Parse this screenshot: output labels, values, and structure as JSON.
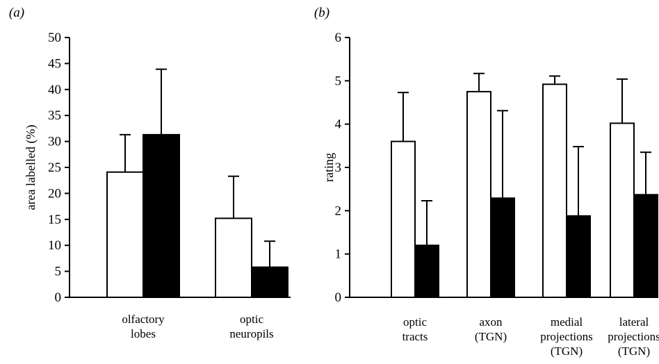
{
  "chart_data": [
    {
      "panel_label": "(a)",
      "type": "bar",
      "ylabel": "area labelled (%)",
      "xlabel": "",
      "ylim": [
        0,
        50
      ],
      "yticks": [
        0,
        5,
        10,
        15,
        20,
        25,
        30,
        35,
        40,
        45,
        50
      ],
      "categories": [
        [
          "olfactory",
          "lobes"
        ],
        [
          "optic",
          "neuropils"
        ]
      ],
      "series": [
        {
          "fill": "#ffffff",
          "values": [
            24.1,
            15.2
          ],
          "errors": [
            7.2,
            8.1
          ]
        },
        {
          "fill": "#000000",
          "values": [
            31.3,
            5.8
          ],
          "errors": [
            12.6,
            5.0
          ]
        }
      ],
      "grid": false,
      "legend": "none"
    },
    {
      "panel_label": "(b)",
      "type": "bar",
      "ylabel": "rating",
      "xlabel": "",
      "ylim": [
        0,
        6
      ],
      "yticks": [
        0,
        1,
        2,
        3,
        4,
        5,
        6
      ],
      "categories": [
        [
          "optic",
          "tracts"
        ],
        [
          "axon",
          "(TGN)"
        ],
        [
          "medial",
          "projections",
          "(TGN)"
        ],
        [
          "lateral",
          "projections",
          "(TGN)"
        ]
      ],
      "series": [
        {
          "fill": "#ffffff",
          "values": [
            3.6,
            4.75,
            4.92,
            4.02
          ],
          "errors": [
            1.13,
            0.42,
            0.19,
            1.02
          ]
        },
        {
          "fill": "#000000",
          "values": [
            1.2,
            2.29,
            1.88,
            2.37
          ],
          "errors": [
            1.03,
            2.02,
            1.6,
            0.98
          ]
        }
      ],
      "grid": false,
      "legend": "none"
    }
  ]
}
